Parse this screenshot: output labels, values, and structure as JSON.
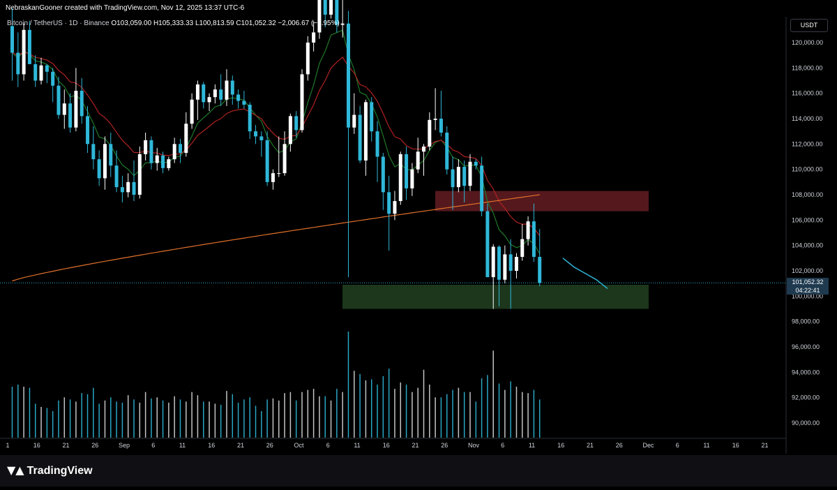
{
  "header": {
    "attribution": "NebraskanGooner created with TradingView.com, Nov 12, 2025 13:37 UTC-6"
  },
  "symbol": {
    "name": "Bitcoin / TetherUS · 1D · Binance",
    "ohlc": "O103,059.00 H105,333.33 L100,813.59 C101,052.32 −2,006.67 (−1.95%)"
  },
  "currency": "USDT",
  "last_price": {
    "price": "101,052.32",
    "countdown": "04:22:41"
  },
  "brand": {
    "name": "TradingView"
  },
  "colors": {
    "background": "#000000",
    "up_candle": "#ffffff",
    "down_candle": "#2fb8d9",
    "ma_fast": "#1f7a2a",
    "ma_mid": "#b02222",
    "ma_slow": "#e0702a",
    "resistance_zone": "#5a1a1f",
    "support_zone": "#1d3a1d",
    "projection": "#2fb8d9"
  },
  "chart_data": {
    "type": "candlestick",
    "y_axis": {
      "range": [
        88800,
        126000
      ],
      "ticks": [
        "120,000.00",
        "118,000.00",
        "116,000.00",
        "114,000.00",
        "112,000.00",
        "110,000.00",
        "108,000.00",
        "106,000.00",
        "104,000.00",
        "102,000.00",
        "100,000.00",
        "98,000.00",
        "96,000.00",
        "94,000.00",
        "92,000.00",
        "90,000.00"
      ]
    },
    "x_axis": {
      "ticks": [
        "1",
        "16",
        "21",
        "26",
        "Sep",
        "6",
        "11",
        "16",
        "21",
        "26",
        "Oct",
        "6",
        "11",
        "16",
        "21",
        "26",
        "Nov",
        "6",
        "11",
        "16",
        "21",
        "26",
        "Dec",
        "6",
        "11",
        "16",
        "21"
      ]
    },
    "zones": [
      {
        "name": "resistance",
        "from": 106700,
        "to": 108300
      },
      {
        "name": "support",
        "from": 99000,
        "to": 100900
      }
    ],
    "last_price": 101052.32,
    "candles": [
      {
        "o": 121300,
        "h": 122700,
        "l": 117000,
        "c": 119200
      },
      {
        "o": 119200,
        "h": 120800,
        "l": 116500,
        "c": 117500
      },
      {
        "o": 117500,
        "h": 121500,
        "l": 117000,
        "c": 121000
      },
      {
        "o": 121000,
        "h": 121700,
        "l": 118300,
        "c": 118300
      },
      {
        "o": 118300,
        "h": 119000,
        "l": 116500,
        "c": 117000
      },
      {
        "o": 117000,
        "h": 118800,
        "l": 116700,
        "c": 118200
      },
      {
        "o": 118200,
        "h": 118300,
        "l": 116800,
        "c": 117700
      },
      {
        "o": 117700,
        "h": 118000,
        "l": 115300,
        "c": 116600
      },
      {
        "o": 116600,
        "h": 117300,
        "l": 114000,
        "c": 114300
      },
      {
        "o": 114300,
        "h": 116300,
        "l": 113200,
        "c": 115200
      },
      {
        "o": 115200,
        "h": 116000,
        "l": 112900,
        "c": 113300
      },
      {
        "o": 113300,
        "h": 118000,
        "l": 113000,
        "c": 116200
      },
      {
        "o": 116200,
        "h": 117200,
        "l": 113600,
        "c": 114200
      },
      {
        "o": 114200,
        "h": 115000,
        "l": 111300,
        "c": 112000
      },
      {
        "o": 112000,
        "h": 113400,
        "l": 110000,
        "c": 110800
      },
      {
        "o": 110800,
        "h": 111500,
        "l": 108700,
        "c": 109300
      },
      {
        "o": 109300,
        "h": 112600,
        "l": 108400,
        "c": 112000
      },
      {
        "o": 112000,
        "h": 112900,
        "l": 109400,
        "c": 110300
      },
      {
        "o": 110300,
        "h": 111500,
        "l": 108200,
        "c": 108600
      },
      {
        "o": 108600,
        "h": 109500,
        "l": 107400,
        "c": 108200
      },
      {
        "o": 108200,
        "h": 109700,
        "l": 107800,
        "c": 109000
      },
      {
        "o": 109000,
        "h": 110700,
        "l": 107500,
        "c": 108000
      },
      {
        "o": 108000,
        "h": 111800,
        "l": 107700,
        "c": 111200
      },
      {
        "o": 111200,
        "h": 112900,
        "l": 110700,
        "c": 112300
      },
      {
        "o": 112300,
        "h": 112600,
        "l": 110000,
        "c": 110500
      },
      {
        "o": 110500,
        "h": 111700,
        "l": 109900,
        "c": 111100
      },
      {
        "o": 111100,
        "h": 111400,
        "l": 109700,
        "c": 110100
      },
      {
        "o": 110100,
        "h": 111000,
        "l": 109900,
        "c": 110800
      },
      {
        "o": 110800,
        "h": 112500,
        "l": 110500,
        "c": 112000
      },
      {
        "o": 112000,
        "h": 112400,
        "l": 110500,
        "c": 111300
      },
      {
        "o": 111300,
        "h": 114500,
        "l": 111000,
        "c": 113600
      },
      {
        "o": 113600,
        "h": 116000,
        "l": 113200,
        "c": 115500
      },
      {
        "o": 115500,
        "h": 117000,
        "l": 113900,
        "c": 116700
      },
      {
        "o": 116700,
        "h": 116900,
        "l": 114800,
        "c": 115300
      },
      {
        "o": 115300,
        "h": 116000,
        "l": 114600,
        "c": 115700
      },
      {
        "o": 115700,
        "h": 116700,
        "l": 115200,
        "c": 116300
      },
      {
        "o": 116300,
        "h": 117500,
        "l": 115000,
        "c": 115500
      },
      {
        "o": 115500,
        "h": 117900,
        "l": 115000,
        "c": 117000
      },
      {
        "o": 117000,
        "h": 117400,
        "l": 115100,
        "c": 115900
      },
      {
        "o": 115900,
        "h": 116300,
        "l": 114800,
        "c": 115400
      },
      {
        "o": 115400,
        "h": 116200,
        "l": 114800,
        "c": 115100
      },
      {
        "o": 115100,
        "h": 115300,
        "l": 112400,
        "c": 113000
      },
      {
        "o": 113000,
        "h": 113500,
        "l": 112000,
        "c": 112600
      },
      {
        "o": 112600,
        "h": 113000,
        "l": 111000,
        "c": 112300
      },
      {
        "o": 112300,
        "h": 113000,
        "l": 108700,
        "c": 109000
      },
      {
        "o": 109000,
        "h": 110000,
        "l": 108400,
        "c": 109700
      },
      {
        "o": 109700,
        "h": 112600,
        "l": 109400,
        "c": 109700
      },
      {
        "o": 109700,
        "h": 113000,
        "l": 109500,
        "c": 112000
      },
      {
        "o": 112000,
        "h": 114400,
        "l": 111400,
        "c": 114200
      },
      {
        "o": 114200,
        "h": 114600,
        "l": 112500,
        "c": 113100
      },
      {
        "o": 113100,
        "h": 117900,
        "l": 112900,
        "c": 117500
      },
      {
        "o": 117500,
        "h": 120500,
        "l": 117000,
        "c": 120000
      },
      {
        "o": 120000,
        "h": 121700,
        "l": 119300,
        "c": 120800
      },
      {
        "o": 120800,
        "h": 123600,
        "l": 120300,
        "c": 123500
      },
      {
        "o": 123500,
        "h": 124500,
        "l": 121200,
        "c": 122200
      },
      {
        "o": 122200,
        "h": 125300,
        "l": 121900,
        "c": 124400
      },
      {
        "o": 124400,
        "h": 126000,
        "l": 120800,
        "c": 121400
      },
      {
        "o": 121400,
        "h": 123500,
        "l": 120400,
        "c": 121500
      },
      {
        "o": 121500,
        "h": 122500,
        "l": 101500,
        "c": 113300
      },
      {
        "o": 113300,
        "h": 116000,
        "l": 112800,
        "c": 114300
      },
      {
        "o": 114300,
        "h": 115000,
        "l": 110500,
        "c": 110700
      },
      {
        "o": 110700,
        "h": 115500,
        "l": 109500,
        "c": 115300
      },
      {
        "o": 115300,
        "h": 115700,
        "l": 112200,
        "c": 113000
      },
      {
        "o": 113000,
        "h": 113800,
        "l": 109000,
        "c": 111000
      },
      {
        "o": 111000,
        "h": 111300,
        "l": 106800,
        "c": 108200
      },
      {
        "o": 108200,
        "h": 109500,
        "l": 103600,
        "c": 106500
      },
      {
        "o": 106500,
        "h": 108300,
        "l": 106000,
        "c": 107500
      },
      {
        "o": 107500,
        "h": 111400,
        "l": 107200,
        "c": 111200
      },
      {
        "o": 111200,
        "h": 111800,
        "l": 107600,
        "c": 108500
      },
      {
        "o": 108500,
        "h": 110500,
        "l": 107900,
        "c": 110000
      },
      {
        "o": 110000,
        "h": 112500,
        "l": 109700,
        "c": 111400
      },
      {
        "o": 111400,
        "h": 112000,
        "l": 109500,
        "c": 111800
      },
      {
        "o": 111800,
        "h": 114500,
        "l": 111500,
        "c": 113900
      },
      {
        "o": 113900,
        "h": 116400,
        "l": 113100,
        "c": 114000
      },
      {
        "o": 114000,
        "h": 116200,
        "l": 112600,
        "c": 112900
      },
      {
        "o": 112900,
        "h": 113400,
        "l": 109600,
        "c": 110000
      },
      {
        "o": 110000,
        "h": 111000,
        "l": 106800,
        "c": 108600
      },
      {
        "o": 108600,
        "h": 110800,
        "l": 108200,
        "c": 110200
      },
      {
        "o": 110200,
        "h": 110700,
        "l": 107400,
        "c": 108700
      },
      {
        "o": 108700,
        "h": 111200,
        "l": 108300,
        "c": 110600
      },
      {
        "o": 110600,
        "h": 110800,
        "l": 110000,
        "c": 110300
      },
      {
        "o": 110300,
        "h": 111000,
        "l": 106300,
        "c": 106700
      },
      {
        "o": 106700,
        "h": 107300,
        "l": 101500,
        "c": 101500
      },
      {
        "o": 101500,
        "h": 104100,
        "l": 99000,
        "c": 103900
      },
      {
        "o": 103900,
        "h": 104000,
        "l": 99200,
        "c": 101300
      },
      {
        "o": 101300,
        "h": 104000,
        "l": 101000,
        "c": 103300
      },
      {
        "o": 103300,
        "h": 104500,
        "l": 99000,
        "c": 102000
      },
      {
        "o": 102000,
        "h": 103400,
        "l": 101400,
        "c": 103100
      },
      {
        "o": 103100,
        "h": 105700,
        "l": 102800,
        "c": 104500
      },
      {
        "o": 104500,
        "h": 106300,
        "l": 104000,
        "c": 105900
      },
      {
        "o": 105900,
        "h": 107300,
        "l": 102700,
        "c": 103100
      },
      {
        "o": 103100,
        "h": 105300,
        "l": 100800,
        "c": 101050
      }
    ],
    "volume": [
      0.48,
      0.5,
      0.48,
      0.47,
      0.32,
      0.29,
      0.28,
      0.25,
      0.35,
      0.38,
      0.36,
      0.34,
      0.42,
      0.41,
      0.47,
      0.32,
      0.35,
      0.38,
      0.34,
      0.33,
      0.4,
      0.36,
      0.33,
      0.43,
      0.37,
      0.38,
      0.35,
      0.33,
      0.39,
      0.36,
      0.34,
      0.43,
      0.4,
      0.34,
      0.34,
      0.32,
      0.31,
      0.44,
      0.41,
      0.33,
      0.36,
      0.38,
      0.3,
      0.25,
      0.36,
      0.37,
      0.35,
      0.42,
      0.43,
      0.35,
      0.43,
      0.45,
      0.46,
      0.39,
      0.39,
      0.35,
      0.46,
      0.43,
      1.0,
      0.63,
      0.6,
      0.54,
      0.55,
      0.5,
      0.58,
      0.65,
      0.46,
      0.52,
      0.5,
      0.43,
      0.47,
      0.64,
      0.5,
      0.38,
      0.38,
      0.41,
      0.45,
      0.47,
      0.43,
      0.43,
      0.34,
      0.56,
      0.59,
      0.82,
      0.51,
      0.45,
      0.53,
      0.48,
      0.43,
      0.42,
      0.45,
      0.36
    ],
    "projection": [
      103000,
      102300,
      101800,
      101300,
      100600
    ]
  }
}
